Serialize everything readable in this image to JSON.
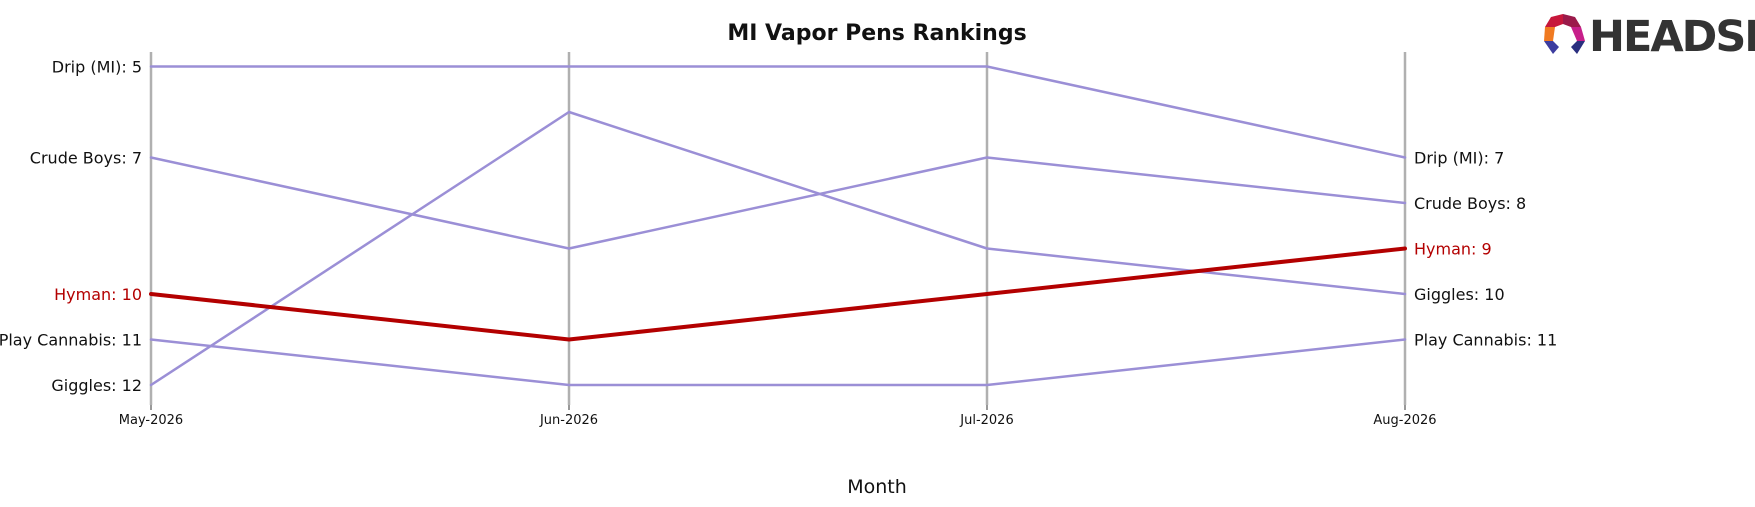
{
  "chart_data": {
    "type": "line",
    "title": "MI Vapor Pens Rankings",
    "xlabel": "Month",
    "ylabel": "",
    "x": [
      "May-2026",
      "Jun-2026",
      "Jul-2026",
      "Aug-2026"
    ],
    "y_scale": "rank (inverted, 1 at top)",
    "ylim": [
      12,
      5
    ],
    "grid": "vertical lines at each month",
    "legend": "none; series labeled at left and right ends",
    "highlight_series": "Hyman",
    "colors": {
      "highlight": "#b30000",
      "other": "#9b8fd6",
      "axis": "#b0b0b0",
      "text": "#111111"
    },
    "series": [
      {
        "name": "Drip (MI)",
        "values": [
          5,
          5,
          5,
          7
        ],
        "left_label": "Drip (MI): 5",
        "right_label": "Drip (MI): 7"
      },
      {
        "name": "Crude Boys",
        "values": [
          7,
          9,
          7,
          8
        ],
        "left_label": "Crude Boys: 7",
        "right_label": "Crude Boys: 8"
      },
      {
        "name": "Hyman",
        "values": [
          10,
          11,
          10,
          9
        ],
        "left_label": "Hyman: 10",
        "right_label": "Hyman: 9"
      },
      {
        "name": "Play Cannabis",
        "values": [
          11,
          12,
          12,
          11
        ],
        "left_label": "Play Cannabis: 11",
        "right_label": "Play Cannabis: 11"
      },
      {
        "name": "Giggles",
        "values": [
          12,
          6,
          9,
          10
        ],
        "left_label": "Giggles: 12",
        "right_label": "Giggles: 10"
      }
    ]
  },
  "logo": {
    "text": "HEADSET",
    "icon": "headset-logo-icon"
  }
}
